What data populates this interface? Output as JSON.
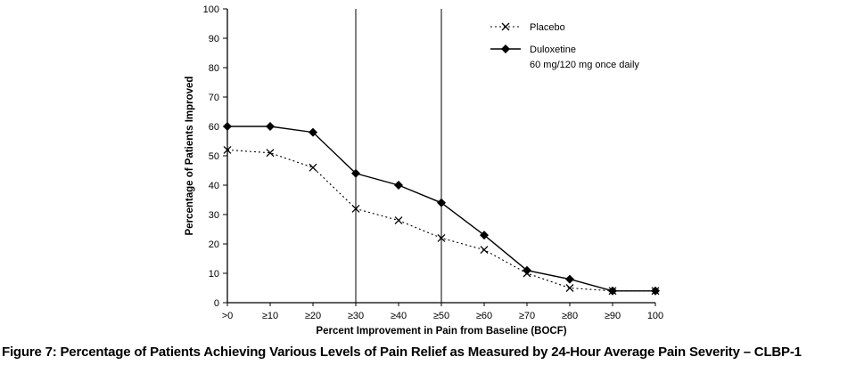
{
  "caption": "Figure 7: Percentage of Patients Achieving Various Levels of Pain Relief as Measured by 24-Hour Average Pain Severity – CLBP-1",
  "chart_data": {
    "type": "line",
    "categories": [
      ">0",
      "≥10",
      "≥20",
      "≥30",
      "≥40",
      "≥50",
      "≥60",
      "≥70",
      "≥80",
      "≥90",
      "100"
    ],
    "series": [
      {
        "name": "Placebo",
        "sublabel": "",
        "values": [
          52,
          51,
          46,
          32,
          28,
          22,
          18,
          10,
          5,
          4,
          4
        ],
        "marker": "x",
        "line": "dotted"
      },
      {
        "name": "Duloxetine",
        "sublabel": "60 mg/120 mg once daily",
        "values": [
          60,
          60,
          58,
          44,
          40,
          34,
          23,
          11,
          8,
          4,
          4
        ],
        "marker": "diamond",
        "line": "solid"
      }
    ],
    "title": "",
    "xlabel": "Percent Improvement in Pain from Baseline (BOCF)",
    "ylabel": "Percentage of  Patients Improved",
    "ylim": [
      0,
      100
    ],
    "ytick_step": 10,
    "reference_lines_at": [
      "≥30",
      "≥50"
    ],
    "legend_position": "top-right-inside",
    "grid": false,
    "colors": {
      "line": "#000000",
      "text": "#000000",
      "background": "#ffffff"
    }
  }
}
